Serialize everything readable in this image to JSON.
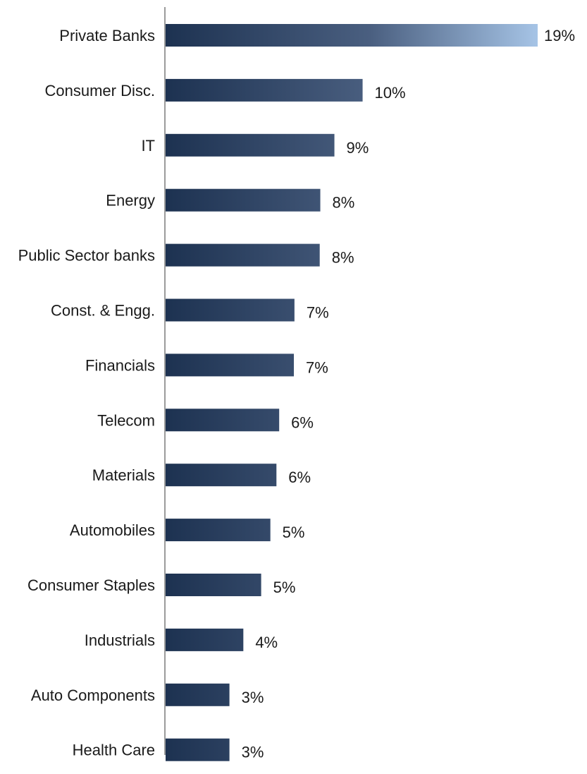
{
  "chart_data": {
    "type": "bar",
    "orientation": "horizontal",
    "title": "",
    "xlabel": "",
    "ylabel": "",
    "categories": [
      "Private Banks",
      "Consumer Disc.",
      "IT",
      "Energy",
      "Public Sector banks",
      "Const. & Engg.",
      "Financials",
      "Telecom",
      "Materials",
      "Automobiles",
      "Consumer Staples",
      "Industrials",
      "Auto Components",
      "Health Care"
    ],
    "values": [
      19,
      10,
      9,
      8,
      8,
      7,
      7,
      6,
      6,
      5,
      5,
      4,
      3,
      3
    ],
    "value_labels": [
      "19%",
      "10%",
      "9%",
      "8%",
      "8%",
      "7%",
      "7%",
      "6%",
      "6%",
      "5%",
      "5%",
      "4%",
      "3%",
      "3%"
    ],
    "bar_lengths_estimated": [
      19,
      10.06,
      8.62,
      7.9,
      7.87,
      6.58,
      6.55,
      5.8,
      5.66,
      5.35,
      4.88,
      3.97,
      3.26,
      3.26
    ],
    "xlim": [
      0,
      19
    ],
    "grid": false,
    "legend": "none",
    "colors": {
      "bar_dark": "#1d3251",
      "bar_mid": "#4a5f80",
      "bar_light": "#a6c4e6",
      "axis": "#7a7a7a",
      "text": "#1a1a1a"
    }
  }
}
